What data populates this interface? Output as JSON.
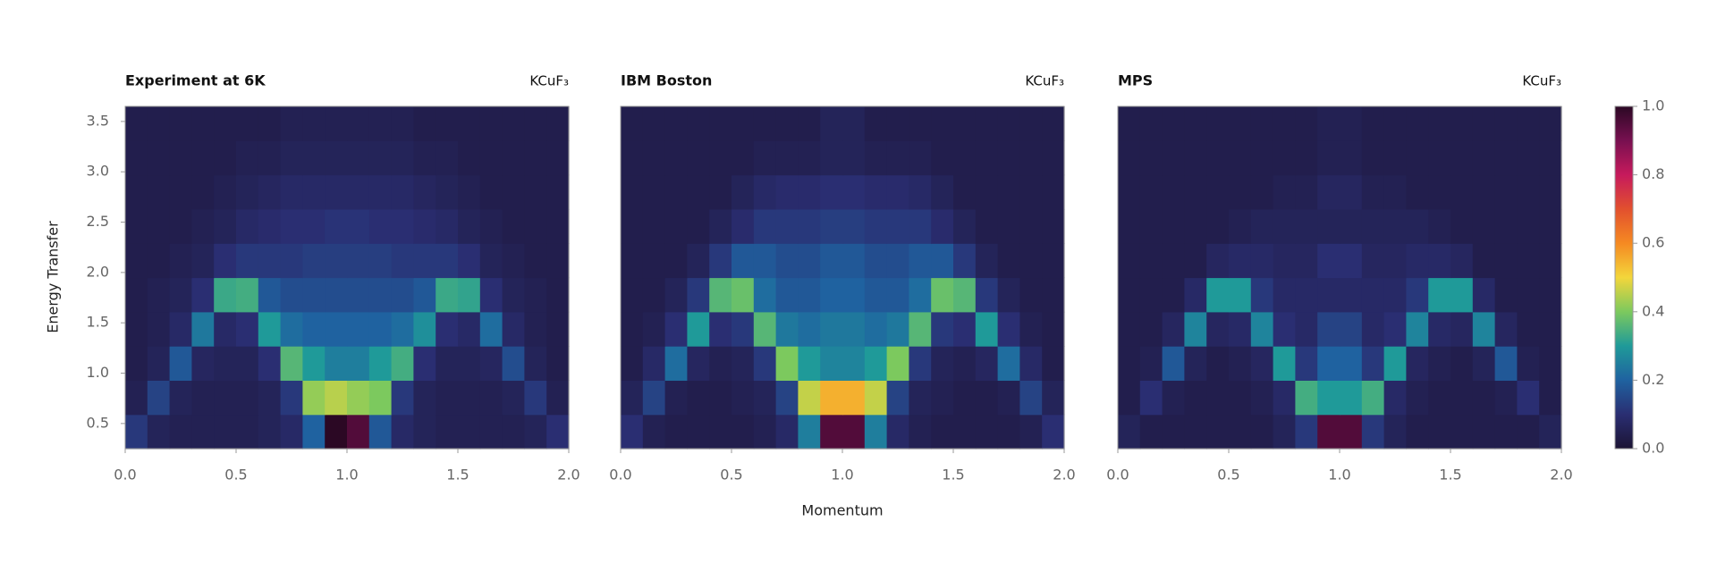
{
  "chart_data": [
    {
      "type": "heatmap",
      "title": "Experiment at 6K",
      "subtitle": "KCuF₃",
      "ylabel": "Energy Transfer",
      "xlim": [
        0,
        2
      ],
      "ylim": [
        0.25,
        3.65
      ],
      "xticks": [
        {
          "value": 0,
          "label": "0.0"
        },
        0.5,
        {
          "value": 1,
          "label": "1.0"
        },
        1.5,
        {
          "value": 2,
          "label": "2.0"
        }
      ],
      "yticks": [
        0.5,
        {
          "value": 1,
          "label": "1.0"
        },
        1.5,
        {
          "value": 2,
          "label": "2.0"
        },
        2.5,
        {
          "value": 3,
          "label": "3.0"
        },
        3.5
      ],
      "xbins": [
        0,
        0.1,
        0.2,
        0.3,
        0.4,
        0.5,
        0.6,
        0.7,
        0.8,
        0.9,
        1.0,
        1.1,
        1.2,
        1.3,
        1.4,
        1.5,
        1.6,
        1.7,
        1.8,
        1.9,
        2.0
      ],
      "ybins": [
        0.25,
        0.59,
        0.93,
        1.27,
        1.61,
        1.95,
        2.29,
        2.63,
        2.97,
        3.31,
        3.65
      ],
      "z": [
        [
          0.12,
          0.06,
          0.05,
          0.05,
          0.05,
          0.05,
          0.06,
          0.08,
          0.2,
          1.0,
          0.95,
          0.18,
          0.08,
          0.06,
          0.05,
          0.05,
          0.05,
          0.05,
          0.06,
          0.1
        ],
        [
          0.05,
          0.14,
          0.06,
          0.05,
          0.05,
          0.05,
          0.06,
          0.12,
          0.42,
          0.45,
          0.42,
          0.4,
          0.12,
          0.06,
          0.05,
          0.05,
          0.05,
          0.06,
          0.12,
          0.05
        ],
        [
          0.04,
          0.06,
          0.18,
          0.07,
          0.06,
          0.06,
          0.1,
          0.36,
          0.3,
          0.25,
          0.25,
          0.3,
          0.34,
          0.1,
          0.06,
          0.06,
          0.07,
          0.16,
          0.06,
          0.04
        ],
        [
          0.04,
          0.05,
          0.08,
          0.24,
          0.08,
          0.1,
          0.3,
          0.22,
          0.2,
          0.2,
          0.2,
          0.2,
          0.22,
          0.28,
          0.1,
          0.08,
          0.22,
          0.08,
          0.05,
          0.04
        ],
        [
          0.04,
          0.05,
          0.06,
          0.1,
          0.33,
          0.34,
          0.18,
          0.16,
          0.16,
          0.16,
          0.16,
          0.16,
          0.16,
          0.18,
          0.33,
          0.32,
          0.1,
          0.06,
          0.05,
          0.04
        ],
        [
          0.04,
          0.04,
          0.05,
          0.06,
          0.1,
          0.12,
          0.12,
          0.12,
          0.13,
          0.13,
          0.13,
          0.13,
          0.12,
          0.12,
          0.12,
          0.1,
          0.06,
          0.05,
          0.04,
          0.04
        ],
        [
          0.04,
          0.04,
          0.04,
          0.05,
          0.06,
          0.08,
          0.09,
          0.1,
          0.1,
          0.11,
          0.11,
          0.1,
          0.1,
          0.09,
          0.08,
          0.06,
          0.05,
          0.04,
          0.04,
          0.04
        ],
        [
          0.04,
          0.04,
          0.04,
          0.04,
          0.05,
          0.06,
          0.07,
          0.08,
          0.08,
          0.08,
          0.08,
          0.08,
          0.08,
          0.07,
          0.06,
          0.05,
          0.04,
          0.04,
          0.04,
          0.04
        ],
        [
          0.04,
          0.04,
          0.04,
          0.04,
          0.04,
          0.05,
          0.05,
          0.06,
          0.06,
          0.06,
          0.06,
          0.06,
          0.06,
          0.05,
          0.05,
          0.04,
          0.04,
          0.04,
          0.04,
          0.04
        ],
        [
          0.04,
          0.04,
          0.04,
          0.04,
          0.04,
          0.04,
          0.04,
          0.05,
          0.05,
          0.05,
          0.05,
          0.05,
          0.05,
          0.04,
          0.04,
          0.04,
          0.04,
          0.04,
          0.04,
          0.04
        ]
      ]
    },
    {
      "type": "heatmap",
      "title": "IBM Boston",
      "subtitle": "KCuF₃",
      "xlabel": "Momentum",
      "xlim": [
        0,
        2
      ],
      "ylim": [
        0.25,
        3.65
      ],
      "xticks": [
        {
          "value": 0,
          "label": "0.0"
        },
        0.5,
        {
          "value": 1,
          "label": "1.0"
        },
        1.5,
        {
          "value": 2,
          "label": "2.0"
        }
      ],
      "xbins": [
        0,
        0.1,
        0.2,
        0.3,
        0.4,
        0.5,
        0.6,
        0.7,
        0.8,
        0.9,
        1.0,
        1.1,
        1.2,
        1.3,
        1.4,
        1.5,
        1.6,
        1.7,
        1.8,
        1.9,
        2.0
      ],
      "ybins": [
        0.25,
        0.59,
        0.93,
        1.27,
        1.61,
        1.95,
        2.29,
        2.63,
        2.97,
        3.31,
        3.65
      ],
      "z": [
        [
          0.1,
          0.05,
          0.04,
          0.04,
          0.04,
          0.04,
          0.05,
          0.08,
          0.25,
          0.95,
          0.95,
          0.25,
          0.08,
          0.05,
          0.04,
          0.04,
          0.04,
          0.04,
          0.05,
          0.1
        ],
        [
          0.06,
          0.14,
          0.05,
          0.04,
          0.04,
          0.05,
          0.06,
          0.14,
          0.46,
          0.55,
          0.55,
          0.46,
          0.14,
          0.06,
          0.05,
          0.04,
          0.04,
          0.05,
          0.14,
          0.06
        ],
        [
          0.04,
          0.08,
          0.22,
          0.07,
          0.05,
          0.06,
          0.12,
          0.4,
          0.3,
          0.26,
          0.26,
          0.3,
          0.4,
          0.12,
          0.06,
          0.05,
          0.07,
          0.22,
          0.08,
          0.04
        ],
        [
          0.04,
          0.05,
          0.1,
          0.3,
          0.1,
          0.12,
          0.36,
          0.24,
          0.22,
          0.24,
          0.24,
          0.22,
          0.24,
          0.36,
          0.12,
          0.1,
          0.3,
          0.1,
          0.05,
          0.04
        ],
        [
          0.04,
          0.04,
          0.06,
          0.12,
          0.36,
          0.38,
          0.22,
          0.18,
          0.18,
          0.2,
          0.2,
          0.18,
          0.18,
          0.22,
          0.38,
          0.36,
          0.12,
          0.06,
          0.04,
          0.04
        ],
        [
          0.04,
          0.04,
          0.04,
          0.06,
          0.12,
          0.18,
          0.18,
          0.16,
          0.16,
          0.18,
          0.18,
          0.16,
          0.16,
          0.18,
          0.18,
          0.12,
          0.06,
          0.04,
          0.04,
          0.04
        ],
        [
          0.04,
          0.04,
          0.04,
          0.04,
          0.06,
          0.09,
          0.12,
          0.12,
          0.12,
          0.13,
          0.13,
          0.12,
          0.12,
          0.12,
          0.09,
          0.06,
          0.04,
          0.04,
          0.04,
          0.04
        ],
        [
          0.04,
          0.04,
          0.04,
          0.04,
          0.04,
          0.06,
          0.08,
          0.09,
          0.09,
          0.1,
          0.1,
          0.09,
          0.09,
          0.08,
          0.06,
          0.04,
          0.04,
          0.04,
          0.04,
          0.04
        ],
        [
          0.04,
          0.04,
          0.04,
          0.04,
          0.04,
          0.04,
          0.05,
          0.05,
          0.05,
          0.06,
          0.06,
          0.05,
          0.05,
          0.05,
          0.04,
          0.04,
          0.04,
          0.04,
          0.04,
          0.04
        ],
        [
          0.04,
          0.04,
          0.04,
          0.04,
          0.04,
          0.04,
          0.04,
          0.04,
          0.04,
          0.06,
          0.06,
          0.04,
          0.04,
          0.04,
          0.04,
          0.04,
          0.04,
          0.04,
          0.04,
          0.04
        ]
      ]
    },
    {
      "type": "heatmap",
      "title": "MPS",
      "subtitle": "KCuF₃",
      "xlim": [
        0,
        2
      ],
      "ylim": [
        0.25,
        3.65
      ],
      "xticks": [
        {
          "value": 0,
          "label": "0.0"
        },
        0.5,
        {
          "value": 1,
          "label": "1.0"
        },
        1.5,
        {
          "value": 2,
          "label": "2.0"
        }
      ],
      "xbins": [
        0,
        0.1,
        0.2,
        0.3,
        0.4,
        0.5,
        0.6,
        0.7,
        0.8,
        0.9,
        1.0,
        1.1,
        1.2,
        1.3,
        1.4,
        1.5,
        1.6,
        1.7,
        1.8,
        1.9,
        2.0
      ],
      "ybins": [
        0.25,
        0.59,
        0.93,
        1.27,
        1.61,
        1.95,
        2.29,
        2.63,
        2.97,
        3.31,
        3.65
      ],
      "z": [
        [
          0.06,
          0.04,
          0.04,
          0.04,
          0.04,
          0.04,
          0.04,
          0.06,
          0.12,
          0.95,
          0.95,
          0.12,
          0.06,
          0.04,
          0.04,
          0.04,
          0.04,
          0.04,
          0.04,
          0.06
        ],
        [
          0.04,
          0.1,
          0.05,
          0.04,
          0.04,
          0.04,
          0.05,
          0.08,
          0.34,
          0.3,
          0.3,
          0.34,
          0.08,
          0.05,
          0.04,
          0.04,
          0.04,
          0.05,
          0.1,
          0.04
        ],
        [
          0.04,
          0.05,
          0.18,
          0.06,
          0.04,
          0.05,
          0.07,
          0.3,
          0.12,
          0.2,
          0.2,
          0.12,
          0.3,
          0.07,
          0.05,
          0.04,
          0.06,
          0.18,
          0.05,
          0.04
        ],
        [
          0.04,
          0.04,
          0.07,
          0.26,
          0.07,
          0.08,
          0.26,
          0.1,
          0.08,
          0.14,
          0.14,
          0.08,
          0.1,
          0.26,
          0.08,
          0.07,
          0.26,
          0.07,
          0.04,
          0.04
        ],
        [
          0.04,
          0.04,
          0.04,
          0.08,
          0.3,
          0.3,
          0.12,
          0.08,
          0.08,
          0.08,
          0.08,
          0.08,
          0.08,
          0.12,
          0.3,
          0.3,
          0.08,
          0.04,
          0.04,
          0.04
        ],
        [
          0.04,
          0.04,
          0.04,
          0.04,
          0.07,
          0.08,
          0.08,
          0.07,
          0.07,
          0.1,
          0.1,
          0.07,
          0.07,
          0.08,
          0.08,
          0.07,
          0.04,
          0.04,
          0.04,
          0.04
        ],
        [
          0.04,
          0.04,
          0.04,
          0.04,
          0.04,
          0.05,
          0.06,
          0.06,
          0.06,
          0.06,
          0.06,
          0.06,
          0.06,
          0.06,
          0.05,
          0.04,
          0.04,
          0.04,
          0.04,
          0.04
        ],
        [
          0.04,
          0.04,
          0.04,
          0.04,
          0.04,
          0.04,
          0.04,
          0.05,
          0.05,
          0.07,
          0.07,
          0.05,
          0.05,
          0.04,
          0.04,
          0.04,
          0.04,
          0.04,
          0.04,
          0.04
        ],
        [
          0.04,
          0.04,
          0.04,
          0.04,
          0.04,
          0.04,
          0.04,
          0.04,
          0.04,
          0.05,
          0.05,
          0.04,
          0.04,
          0.04,
          0.04,
          0.04,
          0.04,
          0.04,
          0.04,
          0.04
        ],
        [
          0.04,
          0.04,
          0.04,
          0.04,
          0.04,
          0.04,
          0.04,
          0.04,
          0.04,
          0.05,
          0.05,
          0.04,
          0.04,
          0.04,
          0.04,
          0.04,
          0.04,
          0.04,
          0.04,
          0.04
        ]
      ]
    }
  ],
  "colorbar": {
    "zlim": [
      0,
      1
    ],
    "ticks": [
      {
        "value": 0,
        "label": "0.0"
      },
      0.2,
      0.4,
      0.6,
      0.8,
      {
        "value": 1,
        "label": "1.0"
      }
    ],
    "colorscale": [
      "#1c1434",
      "#2a2e72",
      "#1f62a0",
      "#1f9a99",
      "#7cc95e",
      "#f3d63b",
      "#f58a22",
      "#e2502e",
      "#c61a5c",
      "#781050",
      "#2b0824"
    ]
  }
}
